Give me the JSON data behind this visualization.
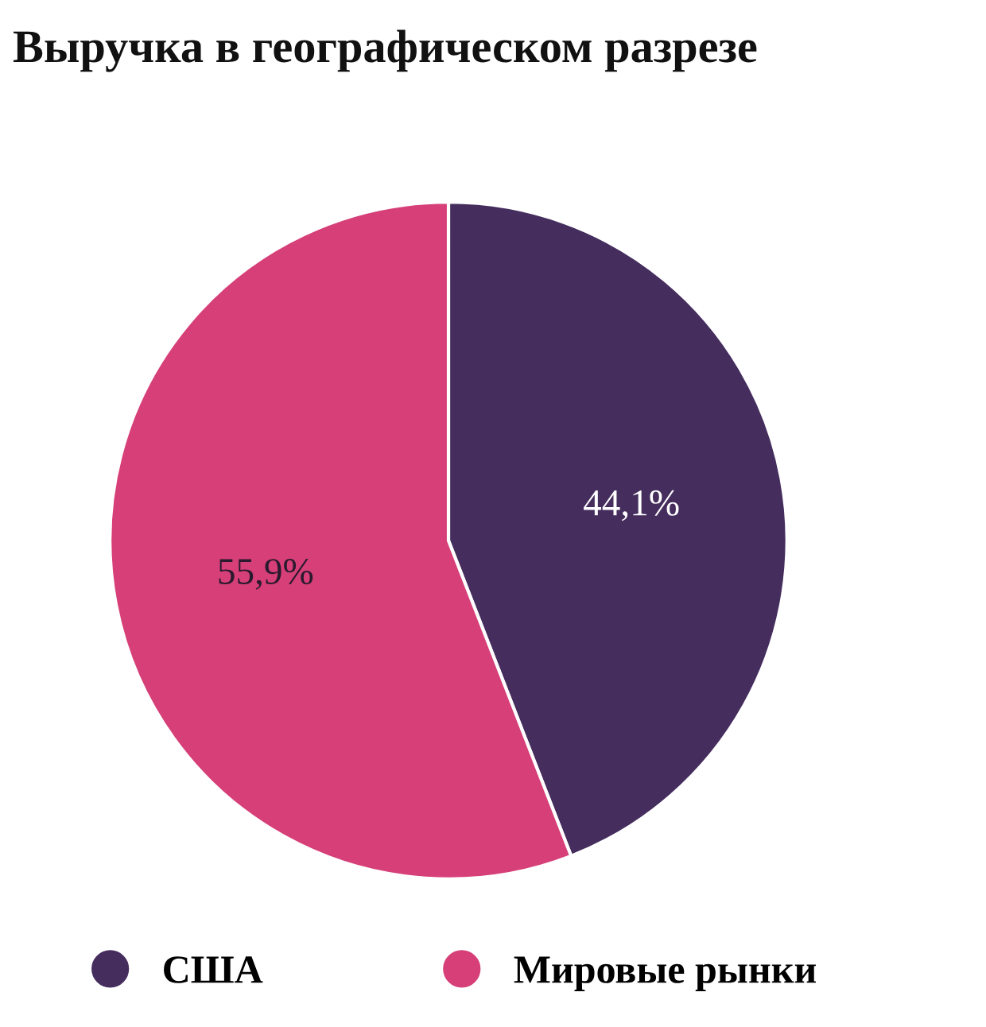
{
  "chart_data": {
    "type": "pie",
    "title": "Выручка в географическом разрезе",
    "categories": [
      "США",
      "Мировые рынки"
    ],
    "values": [
      44.1,
      55.9
    ],
    "value_labels": [
      "44,1%",
      "55,9%"
    ],
    "colors": [
      "#452d5e",
      "#d63f78"
    ],
    "legend": "bottom"
  }
}
